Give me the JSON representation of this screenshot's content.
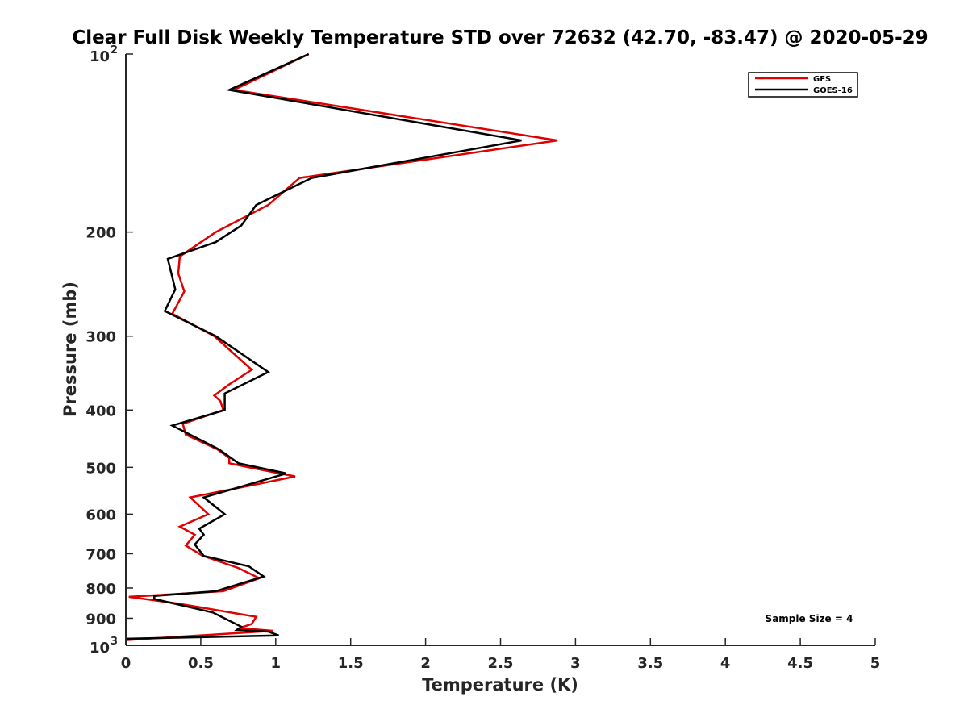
{
  "chart_data": {
    "type": "line",
    "title": "Clear Full Disk Weekly Temperature STD over 72632 (42.70, -83.47) @ 2020-05-29",
    "xlabel": "Temperature (K)",
    "ylabel": "Pressure (mb)",
    "xlim": [
      0,
      5
    ],
    "ylim": [
      100,
      1000
    ],
    "y_scale": "log",
    "y_reversed": true,
    "grid": false,
    "x_ticks": [
      {
        "value": 0,
        "label": "0"
      },
      {
        "value": 0.5,
        "label": "0.5"
      },
      {
        "value": 1,
        "label": "1"
      },
      {
        "value": 1.5,
        "label": "1.5"
      },
      {
        "value": 2,
        "label": "2"
      },
      {
        "value": 2.5,
        "label": "2.5"
      },
      {
        "value": 3,
        "label": "3"
      },
      {
        "value": 3.5,
        "label": "3.5"
      },
      {
        "value": 4,
        "label": "4"
      },
      {
        "value": 4.5,
        "label": "4.5"
      },
      {
        "value": 5,
        "label": "5"
      }
    ],
    "y_ticks": [
      {
        "value": 100,
        "label": "10",
        "sup": "2"
      },
      {
        "value": 200,
        "label": "200"
      },
      {
        "value": 300,
        "label": "300"
      },
      {
        "value": 400,
        "label": "400"
      },
      {
        "value": 500,
        "label": "500"
      },
      {
        "value": 600,
        "label": "600"
      },
      {
        "value": 700,
        "label": "700"
      },
      {
        "value": 800,
        "label": "800"
      },
      {
        "value": 900,
        "label": "900"
      },
      {
        "value": 1000,
        "label": "10",
        "sup": "3"
      }
    ],
    "legend_position": "top-right",
    "annotation": "Sample Size = 4",
    "series": [
      {
        "name": "GFS",
        "color": "#e00000",
        "points": [
          [
            1.22,
            100
          ],
          [
            0.72,
            115
          ],
          [
            2.88,
            140
          ],
          [
            1.16,
            162
          ],
          [
            0.95,
            180
          ],
          [
            0.6,
            200
          ],
          [
            0.36,
            220
          ],
          [
            0.35,
            235
          ],
          [
            0.39,
            252
          ],
          [
            0.31,
            275
          ],
          [
            0.59,
            300
          ],
          [
            0.84,
            342
          ],
          [
            0.69,
            362
          ],
          [
            0.59,
            378
          ],
          [
            0.63,
            386
          ],
          [
            0.65,
            400
          ],
          [
            0.38,
            422
          ],
          [
            0.4,
            440
          ],
          [
            0.61,
            466
          ],
          [
            0.69,
            482
          ],
          [
            0.69,
            492
          ],
          [
            0.79,
            498
          ],
          [
            1.13,
            518
          ],
          [
            0.78,
            540
          ],
          [
            0.43,
            562
          ],
          [
            0.55,
            600
          ],
          [
            0.36,
            630
          ],
          [
            0.46,
            650
          ],
          [
            0.4,
            678
          ],
          [
            0.51,
            705
          ],
          [
            0.75,
            740
          ],
          [
            0.89,
            770
          ],
          [
            0.65,
            810
          ],
          [
            0.02,
            828
          ],
          [
            0.35,
            850
          ],
          [
            0.87,
            895
          ],
          [
            0.84,
            920
          ],
          [
            0.76,
            935
          ],
          [
            0.98,
            945
          ],
          [
            0.14,
            975
          ],
          [
            0.0,
            980
          ]
        ]
      },
      {
        "name": "GOES-16",
        "color": "#000000",
        "points": [
          [
            1.22,
            100
          ],
          [
            0.69,
            115
          ],
          [
            2.64,
            140
          ],
          [
            1.24,
            162
          ],
          [
            0.87,
            180
          ],
          [
            0.77,
            195
          ],
          [
            0.6,
            208
          ],
          [
            0.28,
            222
          ],
          [
            0.33,
            250
          ],
          [
            0.26,
            272
          ],
          [
            0.6,
            300
          ],
          [
            0.95,
            345
          ],
          [
            0.66,
            375
          ],
          [
            0.66,
            400
          ],
          [
            0.31,
            425
          ],
          [
            0.62,
            466
          ],
          [
            0.75,
            492
          ],
          [
            1.07,
            512
          ],
          [
            0.76,
            540
          ],
          [
            0.52,
            562
          ],
          [
            0.66,
            600
          ],
          [
            0.49,
            635
          ],
          [
            0.52,
            650
          ],
          [
            0.46,
            675
          ],
          [
            0.52,
            706
          ],
          [
            0.82,
            735
          ],
          [
            0.92,
            765
          ],
          [
            0.6,
            810
          ],
          [
            0.19,
            825
          ],
          [
            0.19,
            835
          ],
          [
            0.58,
            880
          ],
          [
            0.77,
            930
          ],
          [
            0.74,
            942
          ],
          [
            0.95,
            948
          ],
          [
            1.02,
            962
          ],
          [
            0.0,
            975
          ]
        ]
      }
    ]
  }
}
